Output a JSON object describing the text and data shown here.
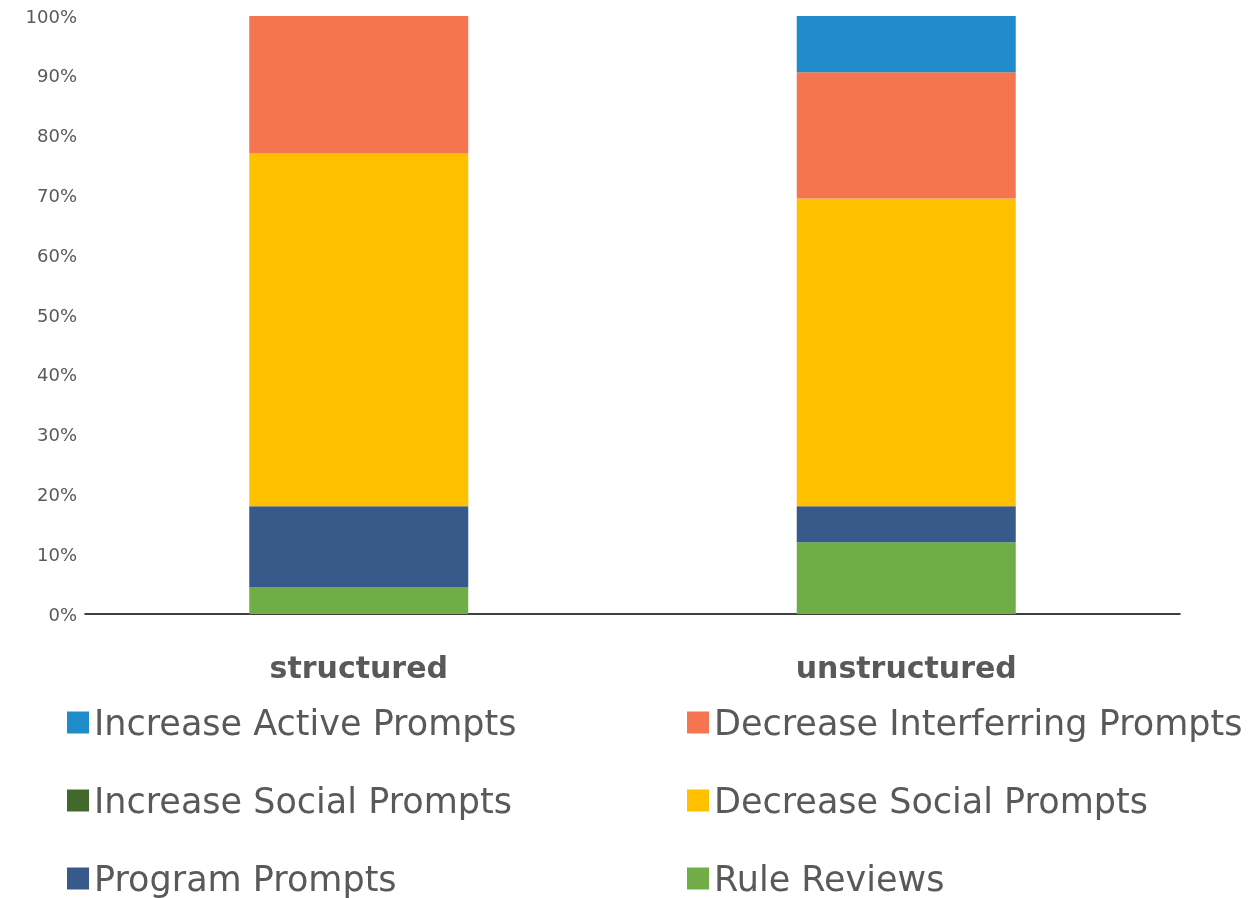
{
  "chart_data": {
    "type": "bar",
    "stacked": true,
    "categories": [
      "structured",
      "unstructured"
    ],
    "ylim": [
      0,
      100
    ],
    "yticks": [
      {
        "value": 0,
        "label": "0%"
      },
      {
        "value": 10,
        "label": "10%"
      },
      {
        "value": 20,
        "label": "20%"
      },
      {
        "value": 30,
        "label": "30%"
      },
      {
        "value": 40,
        "label": "40%"
      },
      {
        "value": 50,
        "label": "50%"
      },
      {
        "value": 60,
        "label": "60%"
      },
      {
        "value": 70,
        "label": "70%"
      },
      {
        "value": 80,
        "label": "80%"
      },
      {
        "value": 90,
        "label": "90%"
      },
      {
        "value": 100,
        "label": "100%"
      }
    ],
    "grid": false,
    "legend": "bottom",
    "series": [
      {
        "name": "Rule Reviews",
        "color": "#70ad47",
        "values": [
          4.5,
          12
        ]
      },
      {
        "name": "Program Prompts",
        "color": "#375a8a",
        "values": [
          13.5,
          6
        ]
      },
      {
        "name": "Decrease Social Prompts",
        "color": "#ffc000",
        "values": [
          59,
          51.5
        ]
      },
      {
        "name": "Increase Social Prompts",
        "color": "#43682b",
        "values": [
          0,
          0
        ]
      },
      {
        "name": "Decrease Interferring Prompts",
        "color": "#f47550",
        "values": [
          23,
          21.1
        ]
      },
      {
        "name": "Increase Active Prompts",
        "color": "#1f8bcb",
        "values": [
          0,
          9.4
        ]
      }
    ]
  }
}
